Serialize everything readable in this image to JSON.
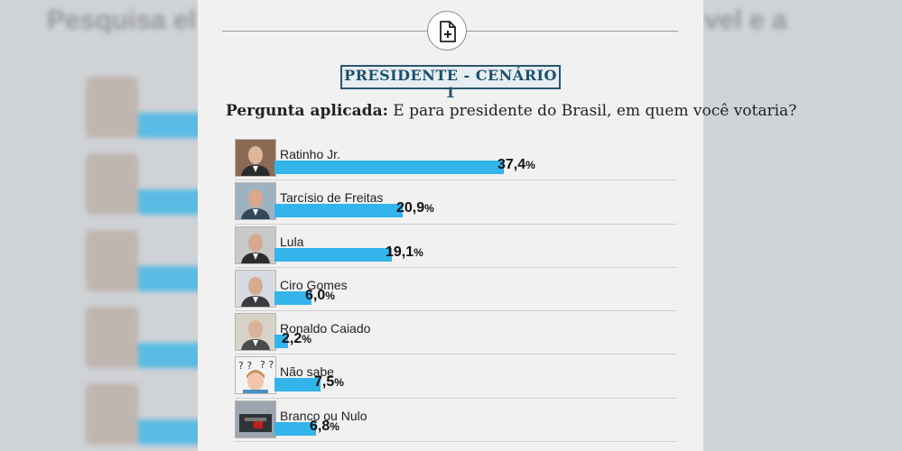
{
  "header": {
    "scenario_title": "PRESIDENTE - CENÁRIO 1",
    "question_label": "Pergunta aplicada:",
    "question_text": "E para presidente do Brasil, em quem você votaria?"
  },
  "backdrop": {
    "blurred_title": "Pesquisa el"
  },
  "colors": {
    "bar": "#33b4ea",
    "title_border": "#2a5770"
  },
  "chart_data": {
    "type": "bar",
    "title": "PRESIDENTE - CENÁRIO 1",
    "orientation": "horizontal",
    "unit": "%",
    "categories": [
      "Ratinho Jr.",
      "Tarcísio de Freitas",
      "Lula",
      "Ciro Gomes",
      "Ronaldo Caiado",
      "Não sabe",
      "Branco ou Nulo"
    ],
    "values": [
      37.4,
      20.9,
      19.1,
      6.0,
      2.2,
      7.5,
      6.8
    ],
    "value_labels": [
      "37,4",
      "20,9",
      "19,1",
      "6,0",
      "2,2",
      "7,5",
      "6,8"
    ],
    "xlim": [
      0,
      37.4
    ]
  }
}
